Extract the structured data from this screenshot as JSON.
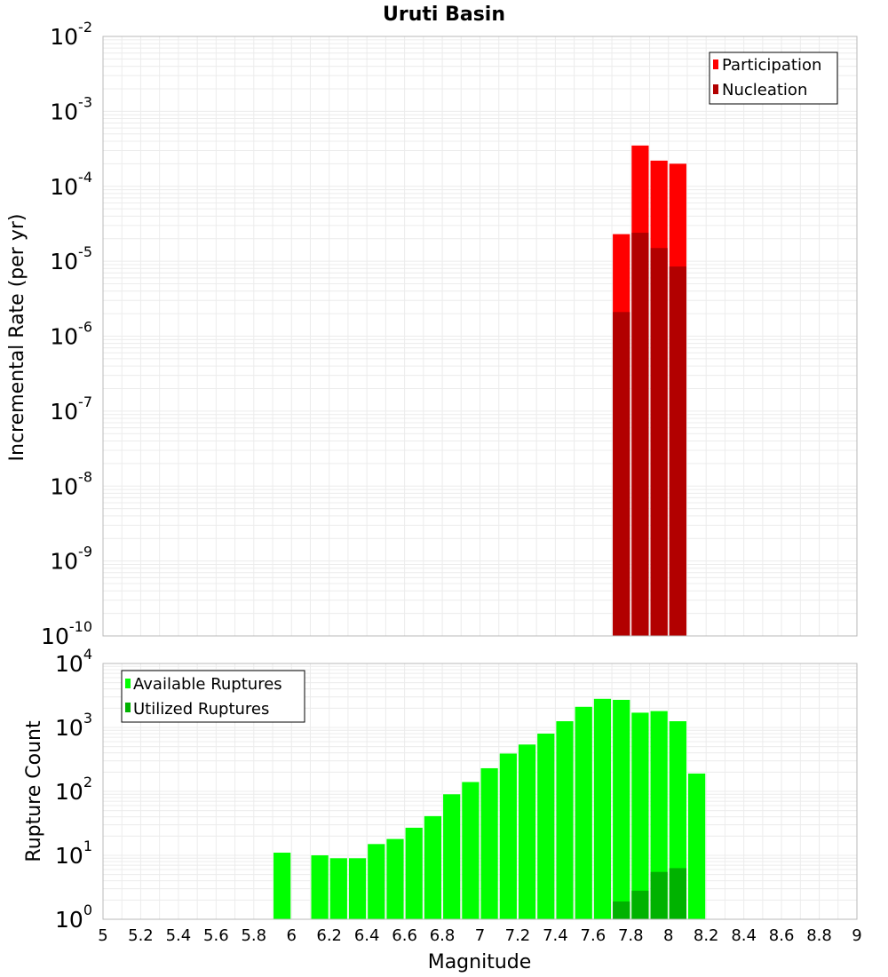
{
  "chart_data": [
    {
      "type": "bar",
      "title": "Uruti Basin",
      "xlabel": "Magnitude",
      "ylabel": "Incremental Rate (per yr)",
      "yscale": "log",
      "ylim_exponents": [
        -10,
        -2
      ],
      "xlim": [
        5,
        9
      ],
      "bin_width": 0.1,
      "legend": [
        "Participation",
        "Nucleation"
      ],
      "legend_position": "top-right",
      "colors": {
        "Participation": "#ff0000",
        "Nucleation": "#b20000"
      },
      "series": [
        {
          "name": "Participation",
          "x": [
            7.75,
            7.85,
            7.95,
            8.05
          ],
          "values": [
            2.3e-05,
            0.00035,
            0.00022,
            0.0002
          ]
        },
        {
          "name": "Nucleation",
          "x": [
            7.75,
            7.85,
            7.95,
            8.05
          ],
          "values": [
            2.1e-06,
            2.4e-05,
            1.5e-05,
            8.5e-06
          ]
        }
      ]
    },
    {
      "type": "bar",
      "title": "",
      "xlabel": "Magnitude",
      "ylabel": "Rupture Count",
      "yscale": "log",
      "ylim_exponents": [
        0,
        4
      ],
      "xlim": [
        5,
        9
      ],
      "xticks": [
        "5",
        "5.2",
        "5.4",
        "5.6",
        "5.8",
        "6",
        "6.2",
        "6.4",
        "6.6",
        "6.8",
        "7",
        "7.2",
        "7.4",
        "7.6",
        "7.8",
        "8",
        "8.2",
        "8.4",
        "8.6",
        "8.8",
        "9"
      ],
      "bin_width": 0.1,
      "legend": [
        "Available Ruptures",
        "Utilized Ruptures"
      ],
      "legend_position": "top-left",
      "colors": {
        "Available Ruptures": "#00ff00",
        "Utilized Ruptures": "#00b200"
      },
      "series": [
        {
          "name": "Available Ruptures",
          "x": [
            5.95,
            6.15,
            6.25,
            6.35,
            6.45,
            6.55,
            6.65,
            6.75,
            6.85,
            6.95,
            7.05,
            7.15,
            7.25,
            7.35,
            7.45,
            7.55,
            7.65,
            7.75,
            7.85,
            7.95,
            8.05,
            8.15
          ],
          "values": [
            11,
            10,
            9,
            9,
            15,
            18,
            27,
            41,
            90,
            140,
            230,
            390,
            540,
            800,
            1250,
            2100,
            2800,
            2700,
            1700,
            1800,
            1250,
            190
          ]
        },
        {
          "name": "Utilized Ruptures",
          "x": [
            7.75,
            7.85,
            7.95,
            8.05
          ],
          "values": [
            1.9,
            2.8,
            5.5,
            6.3
          ]
        }
      ]
    }
  ]
}
